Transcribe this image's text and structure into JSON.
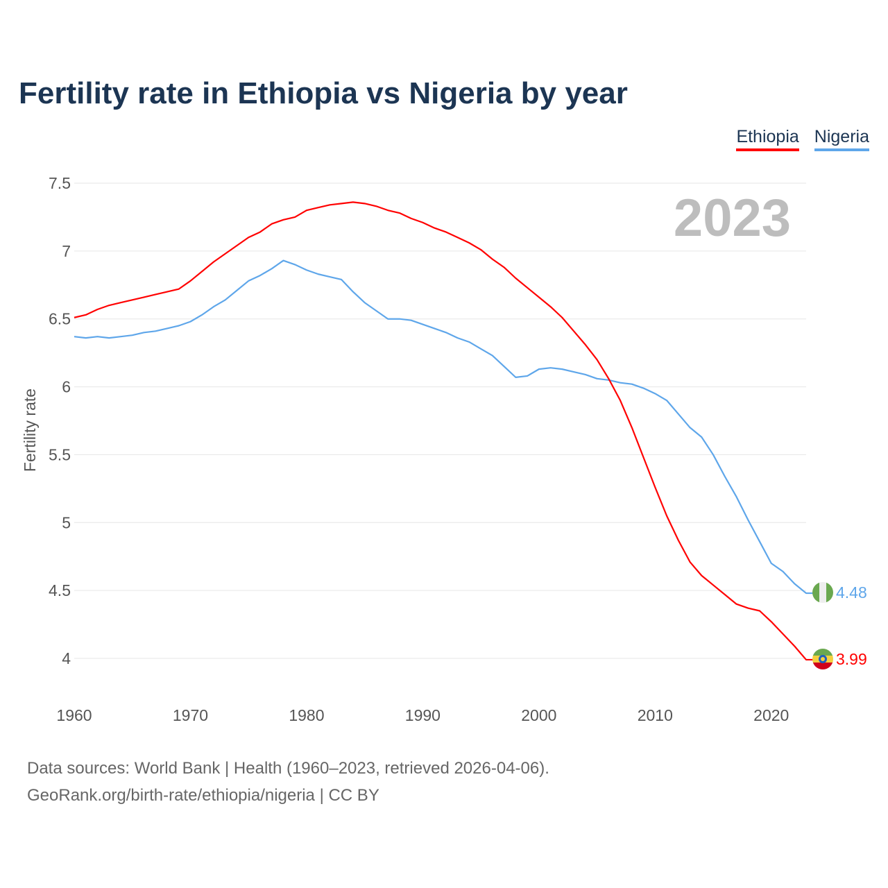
{
  "chart_data": {
    "type": "line",
    "title": "Fertility rate in Ethiopia vs Nigeria by year",
    "xlabel": "",
    "ylabel": "Fertility rate",
    "year_label": "2023",
    "xlim": [
      1960,
      2023
    ],
    "ylim": [
      4,
      7.5
    ],
    "x_ticks": [
      "1960",
      "1970",
      "1980",
      "1990",
      "2000",
      "2010",
      "2020"
    ],
    "y_ticks": [
      "4",
      "4.5",
      "5",
      "5.5",
      "6",
      "6.5",
      "7",
      "7.5"
    ],
    "grid": true,
    "legend_position": "top-right",
    "x": [
      1960,
      1961,
      1962,
      1963,
      1964,
      1965,
      1966,
      1967,
      1968,
      1969,
      1970,
      1971,
      1972,
      1973,
      1974,
      1975,
      1976,
      1977,
      1978,
      1979,
      1980,
      1981,
      1982,
      1983,
      1984,
      1985,
      1986,
      1987,
      1988,
      1989,
      1990,
      1991,
      1992,
      1993,
      1994,
      1995,
      1996,
      1997,
      1998,
      1999,
      2000,
      2001,
      2002,
      2003,
      2004,
      2005,
      2006,
      2007,
      2008,
      2009,
      2010,
      2011,
      2012,
      2013,
      2014,
      2015,
      2016,
      2017,
      2018,
      2019,
      2020,
      2021,
      2022,
      2023
    ],
    "series": [
      {
        "name": "Ethiopia",
        "color": "#ff0000",
        "end_label": "3.99",
        "values": [
          6.51,
          6.53,
          6.57,
          6.6,
          6.62,
          6.64,
          6.66,
          6.68,
          6.7,
          6.72,
          6.78,
          6.85,
          6.92,
          6.98,
          7.04,
          7.1,
          7.14,
          7.2,
          7.23,
          7.25,
          7.3,
          7.32,
          7.34,
          7.35,
          7.36,
          7.35,
          7.33,
          7.3,
          7.28,
          7.24,
          7.21,
          7.17,
          7.14,
          7.1,
          7.06,
          7.01,
          6.94,
          6.88,
          6.8,
          6.73,
          6.66,
          6.59,
          6.51,
          6.41,
          6.31,
          6.2,
          6.06,
          5.9,
          5.7,
          5.48,
          5.26,
          5.05,
          4.87,
          4.71,
          4.61,
          4.54,
          4.47,
          4.4,
          4.37,
          4.35,
          4.27,
          4.18,
          4.09,
          3.99
        ]
      },
      {
        "name": "Nigeria",
        "color": "#5ea6ea",
        "end_label": "4.48",
        "values": [
          6.37,
          6.36,
          6.37,
          6.36,
          6.37,
          6.38,
          6.4,
          6.41,
          6.43,
          6.45,
          6.48,
          6.53,
          6.59,
          6.64,
          6.71,
          6.78,
          6.82,
          6.87,
          6.93,
          6.9,
          6.86,
          6.83,
          6.81,
          6.79,
          6.7,
          6.62,
          6.56,
          6.5,
          6.5,
          6.49,
          6.46,
          6.43,
          6.4,
          6.36,
          6.33,
          6.28,
          6.23,
          6.15,
          6.07,
          6.08,
          6.13,
          6.14,
          6.13,
          6.11,
          6.09,
          6.06,
          6.05,
          6.03,
          6.02,
          5.99,
          5.95,
          5.9,
          5.8,
          5.7,
          5.63,
          5.5,
          5.34,
          5.19,
          5.02,
          4.86,
          4.7,
          4.64,
          4.55,
          4.48
        ]
      }
    ]
  },
  "source": {
    "line1": "Data sources: World Bank | Health (1960–2023, retrieved 2026-04-06).",
    "line2": "GeoRank.org/birth-rate/ethiopia/nigeria | CC BY"
  }
}
